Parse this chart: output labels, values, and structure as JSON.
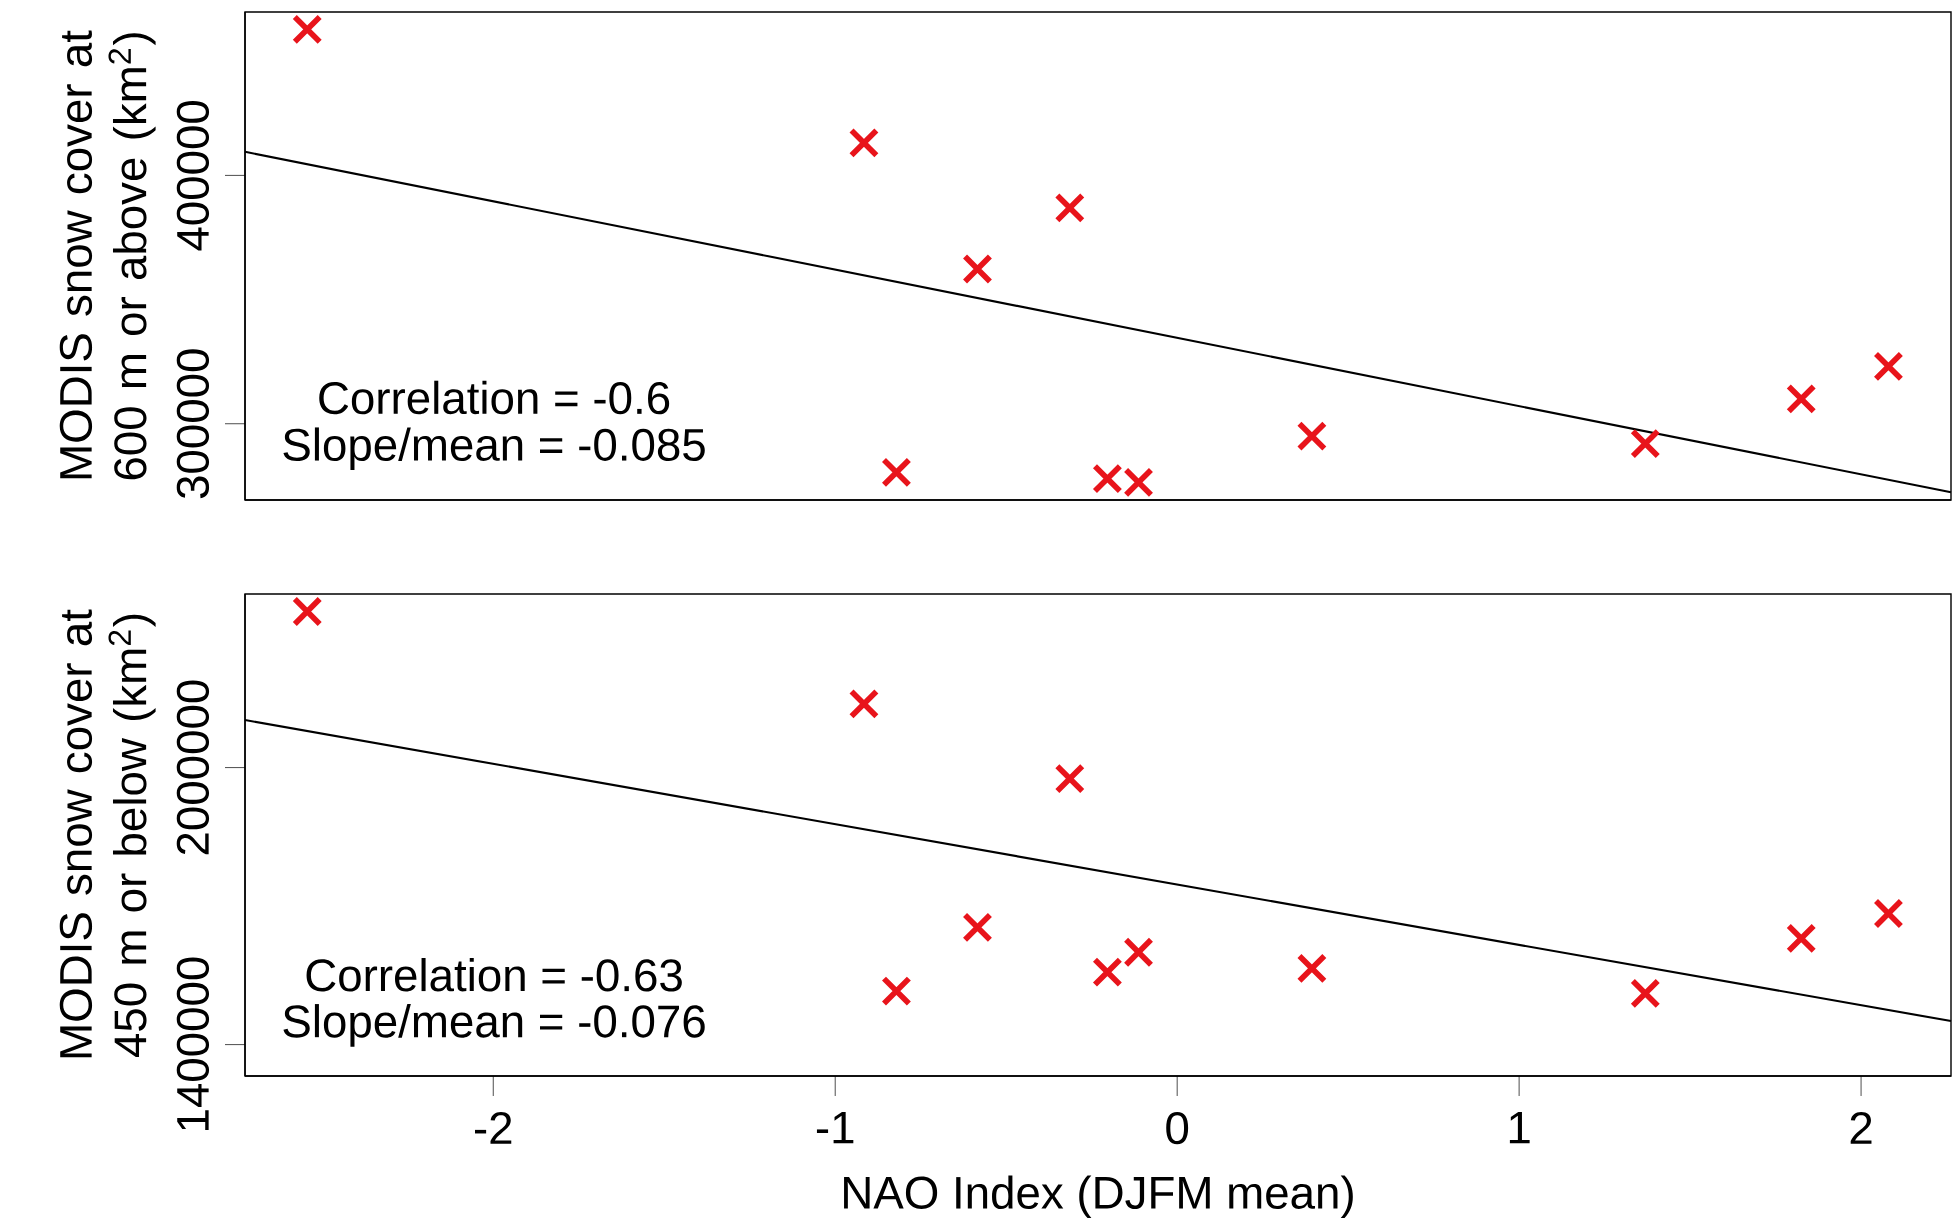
{
  "chart_data": [
    {
      "type": "scatter",
      "ylabel": "MODIS snow cover at 600 m or above (km$^{2}$)",
      "marker": "cross",
      "tick_labels": "y",
      "xlim": [
        -2.726,
        2.263
      ],
      "ylim": [
        269300,
        465800
      ],
      "yticks": [
        300000,
        400000
      ],
      "annotations": [
        "Correlation = -0.6",
        "Slope/mean = -0.085"
      ],
      "series": [
        {
          "color": "#e8141b",
          "x": [
            -2.544,
            -0.916,
            -0.314,
            -0.584,
            -0.821,
            -0.204,
            -0.113,
            0.394,
            1.369,
            1.825,
            2.08
          ],
          "values": [
            458800,
            413100,
            386900,
            362300,
            280400,
            277900,
            276400,
            295000,
            292000,
            310000,
            323100
          ]
        },
        {
          "type": "line",
          "marker": "none",
          "color": "#000000",
          "x": [
            -2.726,
            2.263
          ],
          "values": [
            409500,
            272400
          ]
        }
      ]
    },
    {
      "type": "scatter",
      "ylabel": "MODIS snow cover at 450 m or below (km$^{2}$)",
      "xlabel": "NAO Index (DJFM mean)",
      "marker": "cross",
      "xlim": [
        -2.726,
        2.263
      ],
      "ylim": [
        1332000,
        2376000
      ],
      "xticks": [
        -2,
        -1,
        0,
        1,
        2
      ],
      "yticks": [
        1400000,
        2000000
      ],
      "annotations": [
        "Correlation = -0.63",
        "Slope/mean = -0.076"
      ],
      "series": [
        {
          "color": "#e8141b",
          "x": [
            -2.544,
            -0.916,
            -0.314,
            -0.584,
            -0.821,
            -0.204,
            -0.113,
            0.394,
            1.369,
            1.825,
            2.08
          ],
          "values": [
            2338000,
            2138000,
            1976000,
            1654000,
            1516000,
            1557000,
            1600000,
            1565000,
            1511000,
            1630000,
            1684000
          ]
        },
        {
          "type": "line",
          "marker": "none",
          "color": "#000000",
          "x": [
            -2.726,
            2.263
          ],
          "values": [
            2103000,
            1451000
          ]
        }
      ]
    }
  ]
}
